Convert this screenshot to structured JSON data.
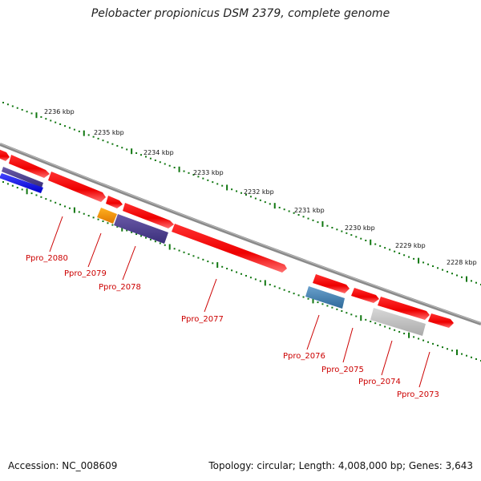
{
  "title": "Pelobacter propionicus DSM 2379, complete genome",
  "footer": {
    "accession": "Accession: NC_008609",
    "summary": "Topology: circular; Length: 4,008,000 bp; Genes: 3,643"
  },
  "colors": {
    "backbone": "#808080",
    "ticks": "#117711",
    "forward_gene": "#ff0000",
    "label": "#cc0000"
  },
  "scale_labels": [
    "2236 kbp",
    "2235 kbp",
    "2234 kbp",
    "2233 kbp",
    "2232 kbp",
    "2231 kbp",
    "2230 kbp",
    "2229 kbp",
    "2228 kbp"
  ],
  "gene_labels": [
    "Ppro_2080",
    "Ppro_2079",
    "Ppro_2078",
    "Ppro_2077",
    "Ppro_2076",
    "Ppro_2075",
    "Ppro_2074",
    "Ppro_2073"
  ]
}
